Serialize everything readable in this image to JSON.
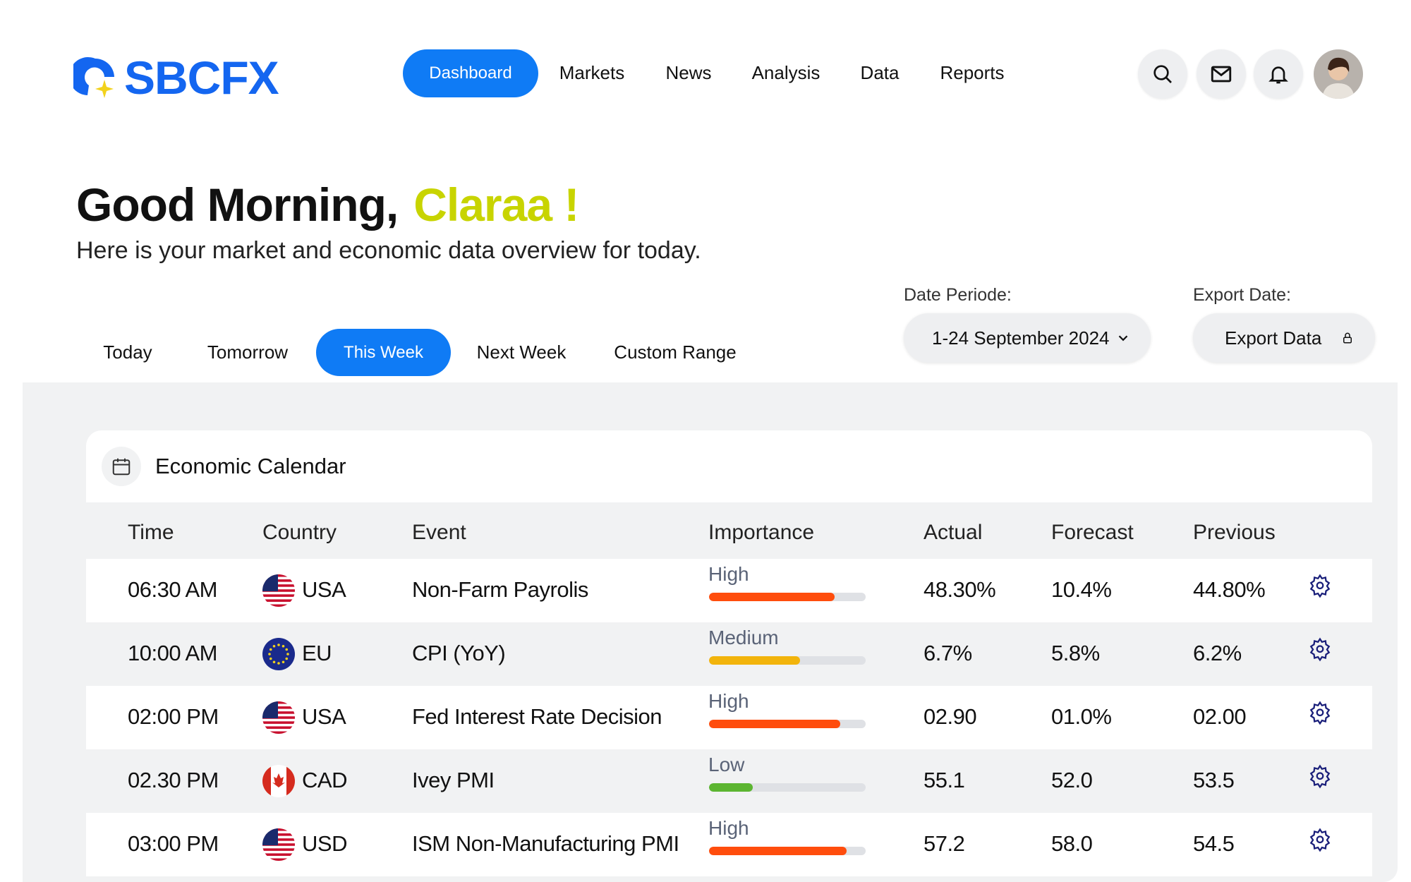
{
  "brand": {
    "name": "SBCFX",
    "primary": "#1466f0",
    "accent": "#f2d21c"
  },
  "nav": {
    "active": "Dashboard",
    "items": [
      "Markets",
      "News",
      "Analysis",
      "Data",
      "Reports"
    ]
  },
  "header_icons": [
    "search-icon",
    "mail-icon",
    "bell-icon",
    "avatar"
  ],
  "greeting": {
    "prefix": "Good Morning,",
    "name": "Claraa !",
    "subtitle": "Here is your market and economic data overview for today."
  },
  "tabs": {
    "items": [
      "Today",
      "Tomorrow",
      "This Week",
      "Next Week",
      "Custom Range"
    ],
    "active": "This Week"
  },
  "date_period": {
    "label": "Date Periode:",
    "value": "1-24 September 2024"
  },
  "export": {
    "label": "Export Date:",
    "button": "Export Data"
  },
  "calendar": {
    "title": "Economic Calendar",
    "columns": [
      "Time",
      "Country",
      "Event",
      "Importance",
      "Actual",
      "Forecast",
      "Previous"
    ],
    "rows": [
      {
        "time": "06:30 AM",
        "flag": "us",
        "country": "USA",
        "event": "Non-Farm Payrolis",
        "importance": "High",
        "level": 0.8,
        "color": "#ff4d0d",
        "actual": "48.30%",
        "forecast": "10.4%",
        "previous": "44.80%"
      },
      {
        "time": "10:00 AM",
        "flag": "eu",
        "country": "EU",
        "event": "CPI (YoY)",
        "importance": "Medium",
        "level": 0.58,
        "color": "#f2b40c",
        "actual": "6.7%",
        "forecast": "5.8%",
        "previous": "6.2%"
      },
      {
        "time": "02:00 PM",
        "flag": "us",
        "country": "USA",
        "event": "Fed Interest Rate Decision",
        "importance": "High",
        "level": 0.84,
        "color": "#ff4d0d",
        "actual": "02.90",
        "forecast": "01.0%",
        "previous": "02.00"
      },
      {
        "time": "02.30 PM",
        "flag": "ca",
        "country": "CAD",
        "event": "Ivey PMI",
        "importance": "Low",
        "level": 0.28,
        "color": "#5cb531",
        "actual": "55.1",
        "forecast": "52.0",
        "previous": "53.5"
      },
      {
        "time": "03:00 PM",
        "flag": "us",
        "country": "USD",
        "event": "ISM Non-Manufacturing PMI",
        "importance": "High",
        "level": 0.88,
        "color": "#ff4d0d",
        "actual": "57.2",
        "forecast": "58.0",
        "previous": "54.5"
      }
    ]
  }
}
